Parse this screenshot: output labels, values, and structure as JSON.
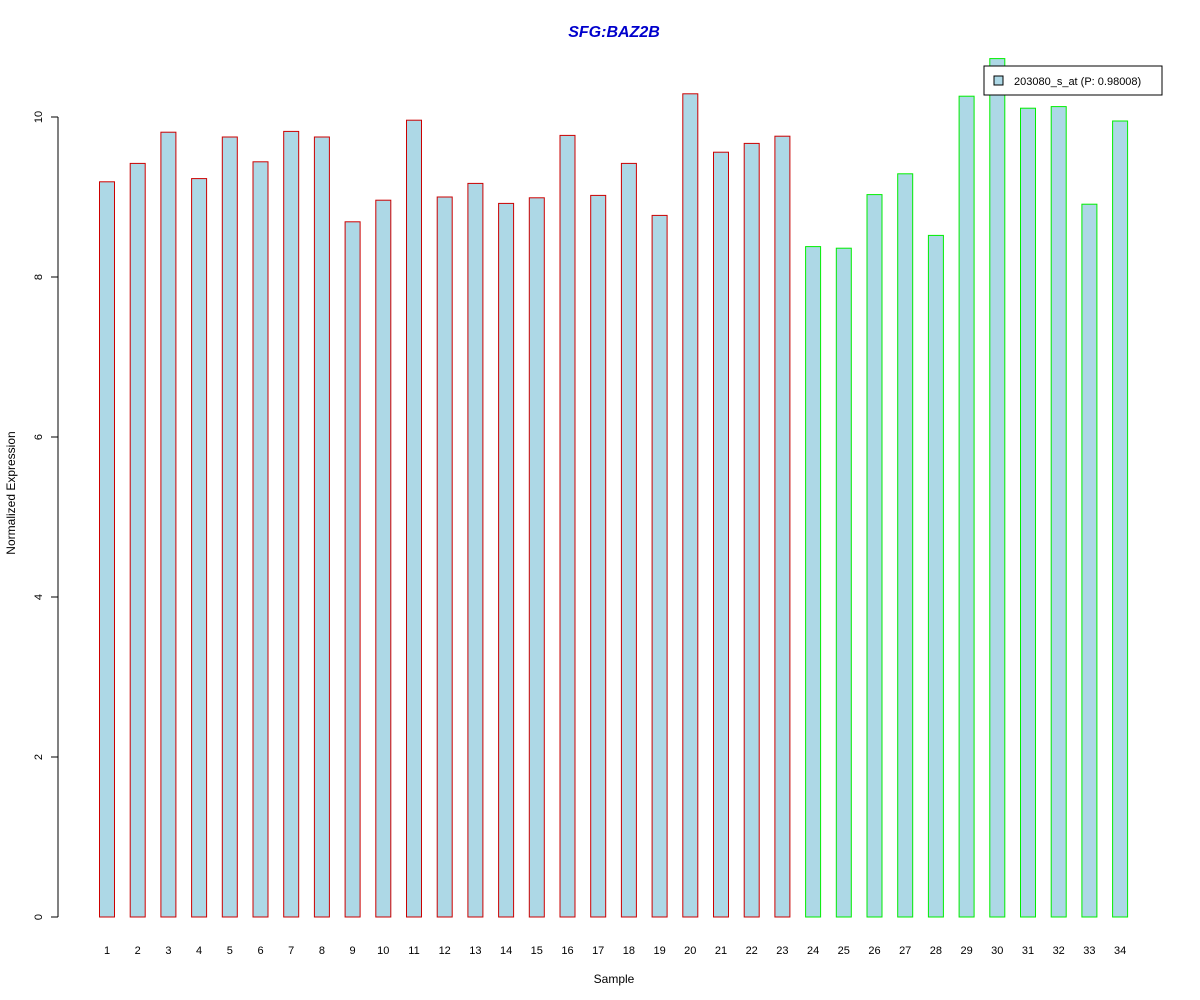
{
  "chart_data": {
    "type": "bar",
    "title": "SFG:BAZ2B",
    "xlabel": "Sample",
    "ylabel": "Normalized Expression",
    "ylim": [
      0,
      10.8
    ],
    "y_ticks": [
      0,
      2,
      4,
      6,
      8,
      10
    ],
    "grid": false,
    "legend": {
      "placement": "top-right",
      "entries": [
        {
          "label": "203080_s_at (P: 0.98008)",
          "fill": "#add8e6"
        }
      ]
    },
    "categories": [
      "1",
      "2",
      "3",
      "4",
      "5",
      "6",
      "7",
      "8",
      "9",
      "10",
      "11",
      "12",
      "13",
      "14",
      "15",
      "16",
      "17",
      "18",
      "19",
      "20",
      "21",
      "22",
      "23",
      "24",
      "25",
      "26",
      "27",
      "28",
      "29",
      "30",
      "31",
      "32",
      "33",
      "34"
    ],
    "series": [
      {
        "name": "203080_s_at (P: 0.98008)",
        "values": [
          9.19,
          9.42,
          9.81,
          9.23,
          9.75,
          9.44,
          9.82,
          9.75,
          8.69,
          8.96,
          9.96,
          9.0,
          9.17,
          8.92,
          8.99,
          9.77,
          9.02,
          9.42,
          8.77,
          10.29,
          9.56,
          9.67,
          9.76,
          8.38,
          8.36,
          9.03,
          9.29,
          8.52,
          10.26,
          10.73,
          10.11,
          10.13,
          8.91,
          9.95
        ]
      }
    ],
    "groups": [
      {
        "from": 1,
        "to": 23,
        "border_color": "#cc0000"
      },
      {
        "from": 24,
        "to": 34,
        "border_color": "#00ee00"
      }
    ],
    "colors": {
      "bar_fill": "#add8e6",
      "title": "#0000cc",
      "axis": "#000000"
    }
  }
}
